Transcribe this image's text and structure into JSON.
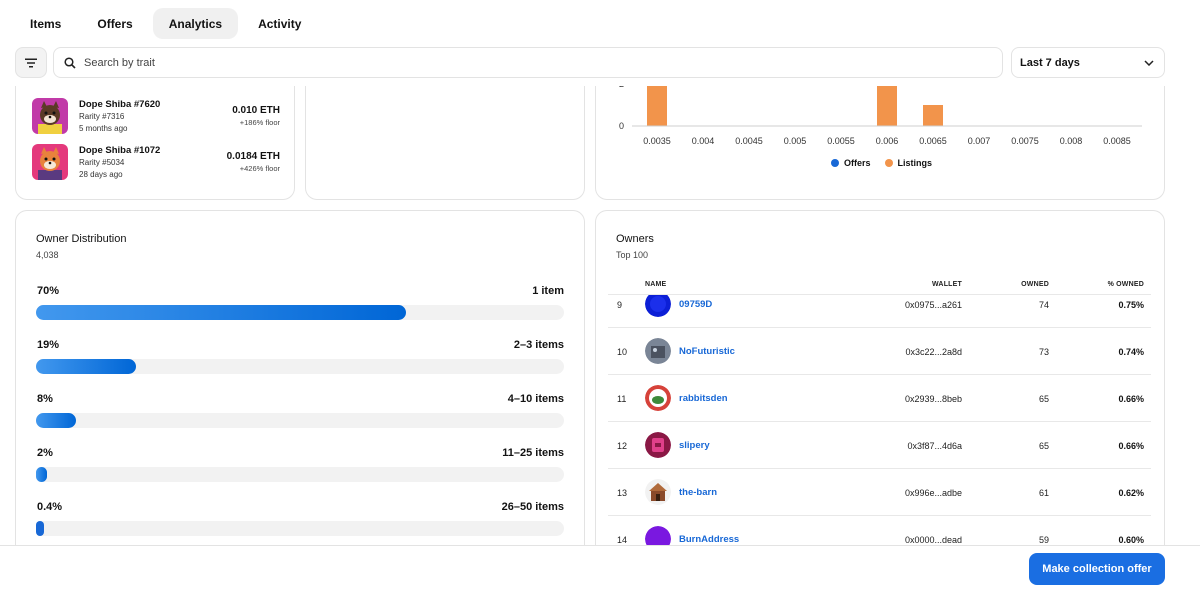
{
  "tabs": [
    {
      "label": "Items",
      "active": false
    },
    {
      "label": "Offers",
      "active": false
    },
    {
      "label": "Analytics",
      "active": true
    },
    {
      "label": "Activity",
      "active": false
    }
  ],
  "filters": {
    "filter_icon": "filter-icon",
    "search_placeholder": "Search by trait",
    "period_value": "Last 7 days"
  },
  "sales": [
    {
      "name": "Dope Shiba #7620",
      "rarity": "Rarity #7316",
      "time": "5 months ago",
      "price": "0.010 ETH",
      "floor": "+186% floor",
      "thumb_bg": "#c13aa8",
      "thumb_face": "#5b3a26"
    },
    {
      "name": "Dope Shiba #1072",
      "rarity": "Rarity #5034",
      "time": "28 days ago",
      "price": "0.0184 ETH",
      "floor": "+426% floor",
      "thumb_bg": "#e4397c",
      "thumb_face": "#e8823c"
    }
  ],
  "chart_data": {
    "type": "bar",
    "x_ticks": [
      "0.0035",
      "0.004",
      "0.0045",
      "0.005",
      "0.0055",
      "0.006",
      "0.0065",
      "0.007",
      "0.0075",
      "0.008",
      "0.0085"
    ],
    "y_ticks_visible": [
      "2",
      "0"
    ],
    "series": [
      {
        "name": "Offers",
        "color": "#1868d6",
        "points": []
      },
      {
        "name": "Listings",
        "color": "#f2944b",
        "points": [
          {
            "x": 0.0035,
            "y": 3
          },
          {
            "x": 0.006,
            "y": 3
          },
          {
            "x": 0.0065,
            "y": 1
          }
        ]
      }
    ],
    "legend_position": "bottom"
  },
  "distribution": {
    "title": "Owner Distribution",
    "total": "4,038",
    "rows": [
      {
        "pct": "70%",
        "label": "1 item",
        "fraction": 0.7
      },
      {
        "pct": "19%",
        "label": "2–3 items",
        "fraction": 0.19
      },
      {
        "pct": "8%",
        "label": "4–10 items",
        "fraction": 0.076
      },
      {
        "pct": "2%",
        "label": "11–25 items",
        "fraction": 0.02
      },
      {
        "pct": "0.4%",
        "label": "26–50 items",
        "fraction": 0.004
      }
    ]
  },
  "owners": {
    "title": "Owners",
    "subtitle": "Top 100",
    "headers": {
      "name": "NAME",
      "wallet": "WALLET",
      "owned": "OWNED",
      "pct": "% OWNED"
    },
    "rows": [
      {
        "rank": "9",
        "name": "09759D",
        "wallet": "0x0975...a261",
        "owned": "74",
        "pct": "0.75%",
        "avatar": "#0c1fd6"
      },
      {
        "rank": "10",
        "name": "NoFuturistic",
        "wallet": "0x3c22...2a8d",
        "owned": "73",
        "pct": "0.74%",
        "avatar": "#7a8596"
      },
      {
        "rank": "11",
        "name": "rabbitsden",
        "wallet": "0x2939...8beb",
        "owned": "65",
        "pct": "0.66%",
        "avatar": "#d6423a"
      },
      {
        "rank": "12",
        "name": "slipery",
        "wallet": "0x3f87...4d6a",
        "owned": "65",
        "pct": "0.66%",
        "avatar": "#8a1845"
      },
      {
        "rank": "13",
        "name": "the-barn",
        "wallet": "0x996e...adbe",
        "owned": "61",
        "pct": "0.62%",
        "avatar": "#b06a3b"
      },
      {
        "rank": "14",
        "name": "BurnAddress",
        "wallet": "0x0000...dead",
        "owned": "59",
        "pct": "0.60%",
        "avatar": "#7a18e0"
      }
    ]
  },
  "cta": {
    "label": "Make collection offer"
  }
}
